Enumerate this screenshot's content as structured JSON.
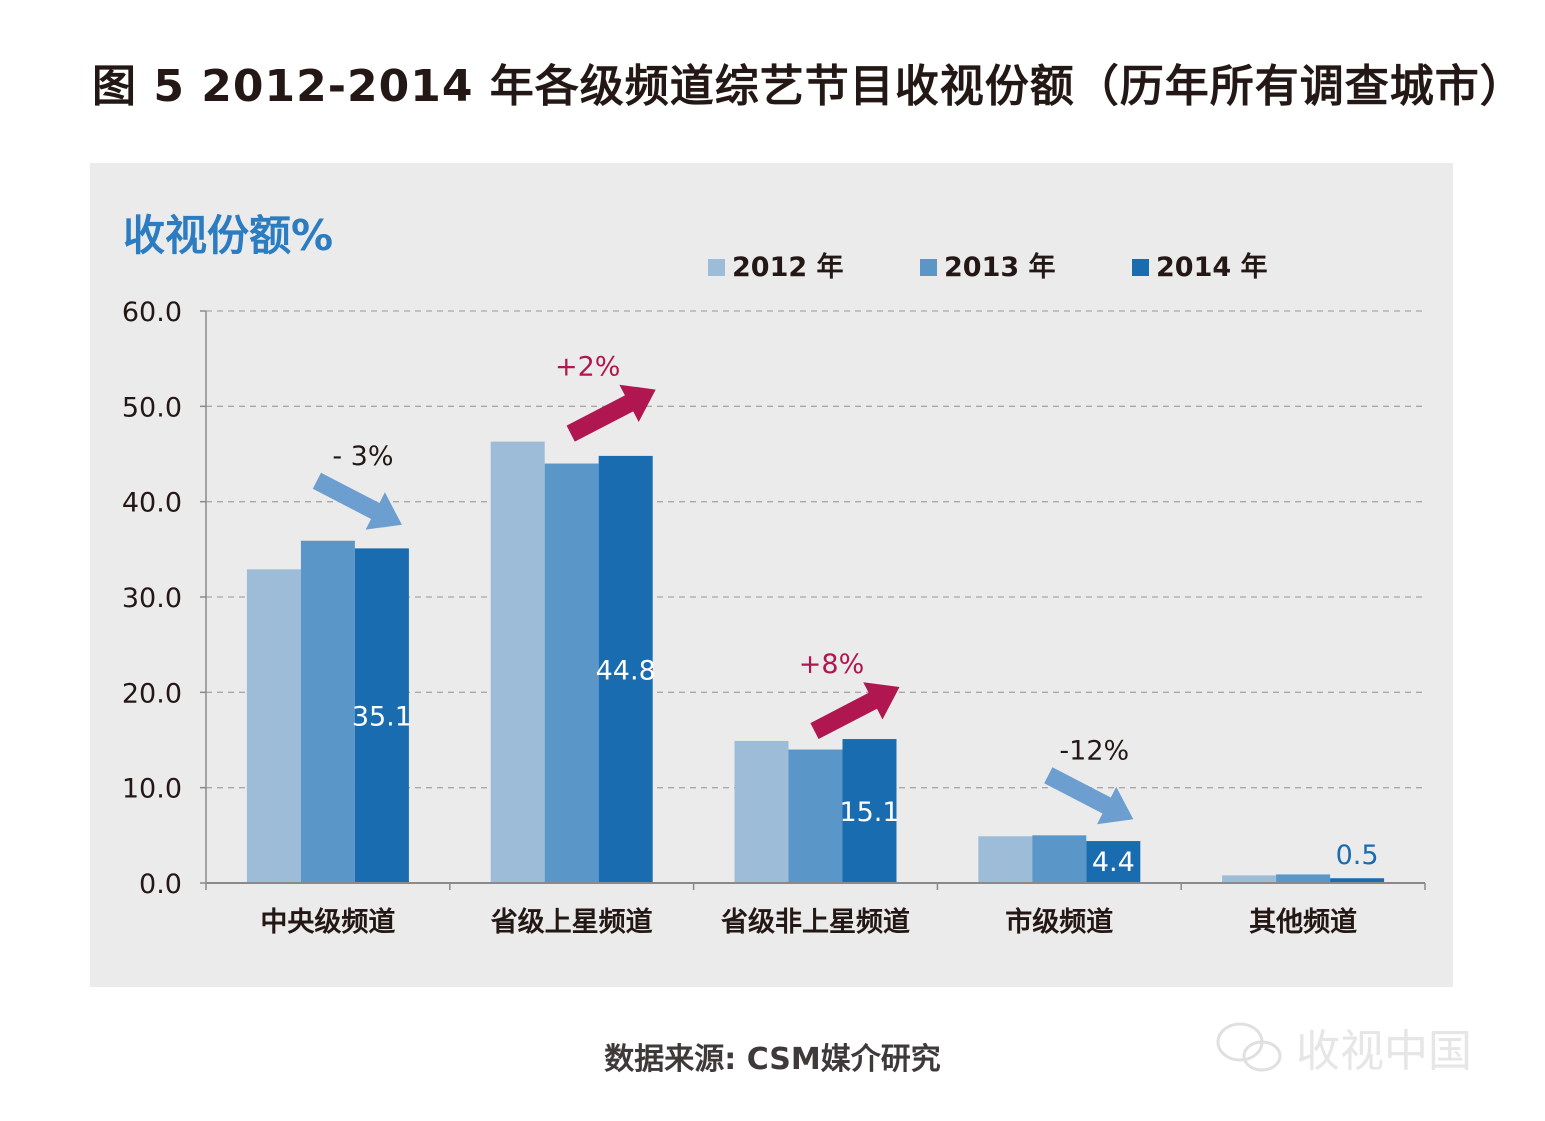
{
  "title": "图 5  2012-2014 年各级频道综艺节目收视份额（历年所有调查城市）",
  "source": "数据来源: CSM媒介研究",
  "watermark": "收视中国",
  "colors": {
    "panel_bg": "#ebebeb",
    "series_2012": "#9cbcd8",
    "series_2013": "#5b96c8",
    "series_2014": "#1a6cb0",
    "arrow_up": "#b0164f",
    "arrow_down": "#6c9ecf",
    "ylabel": "#2b7cc0"
  },
  "chart_data": {
    "type": "bar",
    "ylabel": "收视份额%",
    "ylim": [
      0,
      60
    ],
    "yticks": [
      "0.0",
      "10.0",
      "20.0",
      "30.0",
      "40.0",
      "50.0",
      "60.0"
    ],
    "grid": true,
    "legend_position": "top",
    "categories": [
      "中央级频道",
      "省级上星频道",
      "省级非上星频道",
      "市级频道",
      "其他频道"
    ],
    "series": [
      {
        "name": "2012 年",
        "values": [
          32.9,
          46.3,
          14.9,
          4.9,
          0.8
        ]
      },
      {
        "name": "2013 年",
        "values": [
          35.9,
          44.0,
          14.0,
          5.0,
          0.9
        ]
      },
      {
        "name": "2014 年",
        "values": [
          35.1,
          44.8,
          15.1,
          4.4,
          0.5
        ]
      }
    ],
    "data_labels": [
      "35.1",
      "44.8",
      "15.1",
      "4.4",
      "0.5"
    ],
    "annotations": [
      {
        "category": "中央级频道",
        "text": "- 3%",
        "direction": "down"
      },
      {
        "category": "省级上星频道",
        "text": "+2%",
        "direction": "up"
      },
      {
        "category": "省级非上星频道",
        "text": "+8%",
        "direction": "up"
      },
      {
        "category": "市级频道",
        "text": "-12%",
        "direction": "down"
      }
    ]
  }
}
